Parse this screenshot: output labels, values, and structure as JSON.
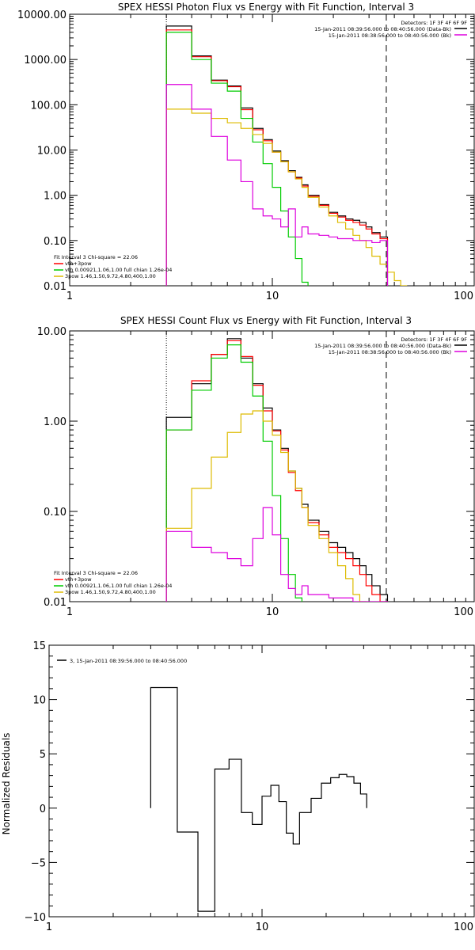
{
  "chart_data": [
    {
      "type": "line",
      "title": "SPEX HESSI Photon Flux vs Energy with Fit Function, Interval 3",
      "xscale": "log",
      "yscale": "log",
      "xlim": [
        1,
        100
      ],
      "ylim": [
        0.01,
        10000
      ],
      "xticks": [
        "1",
        "10",
        "100"
      ],
      "yticks": [
        "0.01",
        "0.10",
        "1.00",
        "10.00",
        "100.00",
        "1000.00",
        "10000.00"
      ],
      "yticklabels": [
        "0.01",
        "0.10",
        "1.00",
        "10.00",
        "100.00",
        "1000.00",
        "10000.00"
      ],
      "legend_top": {
        "placement": "top-right",
        "lines": [
          {
            "text": "Detectors: 1F 3F 4F 6F 9F",
            "color": ""
          },
          {
            "text": "15-Jan-2011 08:39:56.000 to 08:40:56.000 (Data-Bk)",
            "color": "#000000"
          },
          {
            "text": "15-Jan-2011 08:38:56.000 to 08:40:56.000 (Bk)",
            "color": "#dd00dd"
          }
        ]
      },
      "legend_bottom": {
        "placement": "bottom-left",
        "lines": [
          {
            "text": "Fit Interval 3   Chi-square = 22.06",
            "color": ""
          },
          {
            "text": "vth+3pow",
            "color": "#ff0000"
          },
          {
            "text": "vth 0.00921,1.06,1.00  full chian 1.26e-04",
            "color": "#00cc00"
          },
          {
            "text": "3pow 1.46,1.50,9.72,4.80,400,1.00",
            "color": "#ddbb00"
          }
        ]
      },
      "markers": {
        "dotted_x": 3.0,
        "dashed_x": 36.5
      },
      "bin_edges": [
        3.0,
        4.0,
        5.0,
        6.0,
        7.0,
        8.0,
        9.0,
        10.0,
        11.0,
        12.0,
        13.0,
        14.0,
        15.0,
        17.0,
        19.0,
        21.0,
        23.0,
        25.0,
        27.0,
        29.0,
        31.0,
        34.0,
        37.0,
        40.0,
        43.0,
        46.0
      ],
      "series": [
        {
          "color": "#000000",
          "values": [
            5500,
            1200,
            350,
            260,
            85,
            30,
            17,
            9.5,
            5.8,
            3.5,
            2.5,
            1.7,
            1.0,
            0.62,
            0.42,
            0.35,
            0.3,
            0.28,
            0.25,
            0.2,
            0.15,
            0.12,
            null,
            null,
            null
          ]
        },
        {
          "color": "#ff0000",
          "values": [
            4500,
            1150,
            340,
            250,
            78,
            28,
            16,
            9.0,
            5.5,
            3.3,
            2.4,
            1.6,
            0.95,
            0.6,
            0.4,
            0.33,
            0.28,
            0.25,
            0.22,
            0.18,
            0.14,
            0.11,
            null,
            null,
            null
          ]
        },
        {
          "color": "#00cc00",
          "values": [
            4000,
            1000,
            300,
            200,
            50,
            15,
            5,
            1.5,
            0.45,
            0.12,
            0.04,
            0.012,
            null,
            null,
            null,
            null,
            null,
            null,
            null,
            null,
            null,
            null,
            null,
            null,
            null
          ]
        },
        {
          "color": "#ddbb00",
          "values": [
            80,
            65,
            50,
            40,
            30,
            22,
            14,
            9.0,
            5.5,
            3.3,
            2.3,
            1.5,
            0.9,
            0.55,
            0.35,
            0.25,
            0.18,
            0.13,
            0.1,
            0.07,
            0.045,
            0.03,
            0.02,
            0.013,
            0.009
          ]
        },
        {
          "color": "#dd00dd",
          "values": [
            280,
            80,
            20,
            6,
            2.0,
            0.5,
            0.35,
            0.3,
            0.2,
            0.5,
            0.12,
            0.2,
            0.14,
            0.13,
            0.12,
            0.11,
            0.11,
            0.1,
            0.1,
            0.1,
            0.09,
            0.1,
            null,
            null,
            null
          ]
        }
      ]
    },
    {
      "type": "line",
      "title": "SPEX HESSI Count Flux vs Energy with Fit Function, Interval 3",
      "xscale": "log",
      "yscale": "log",
      "xlim": [
        1,
        100
      ],
      "ylim": [
        0.01,
        10
      ],
      "xticks": [
        "1",
        "10",
        "100"
      ],
      "yticks": [
        "0.01",
        "0.10",
        "1.00",
        "10.00"
      ],
      "yticklabels": [
        "0.01",
        "0.10",
        "1.00",
        "10.00"
      ],
      "legend_top": {
        "placement": "top-right",
        "lines": [
          {
            "text": "Detectors: 1F 3F 4F 6F 9F",
            "color": ""
          },
          {
            "text": "15-Jan-2011 08:39:56.000 to 08:40:56.000 (Data-Bk)",
            "color": "#000000"
          },
          {
            "text": "15-Jan-2011 08:38:56.000 to 08:40:56.000 (Bk)",
            "color": "#dd00dd"
          }
        ]
      },
      "legend_bottom": {
        "placement": "bottom-left",
        "lines": [
          {
            "text": "Fit Interval 3   Chi-square = 22.06",
            "color": ""
          },
          {
            "text": "vth+3pow",
            "color": "#ff0000"
          },
          {
            "text": "vth 0.00921,1.06,1.00  full chian 1.26e-04",
            "color": "#00cc00"
          },
          {
            "text": "3pow 1.46,1.50,9.72,4.80,400,1.00",
            "color": "#ddbb00"
          }
        ]
      },
      "markers": {
        "dotted_x": 3.0,
        "dashed_x": 36.5
      },
      "bin_edges": [
        3.0,
        4.0,
        5.0,
        6.0,
        7.0,
        8.0,
        9.0,
        10.0,
        11.0,
        12.0,
        13.0,
        14.0,
        15.0,
        17.0,
        19.0,
        21.0,
        23.0,
        25.0,
        27.0,
        29.0,
        31.0,
        34.0,
        37.0
      ],
      "series": [
        {
          "color": "#000000",
          "values": [
            1.1,
            2.6,
            5.5,
            8.2,
            5.0,
            2.6,
            1.4,
            0.8,
            0.5,
            0.28,
            0.18,
            0.12,
            0.08,
            0.06,
            0.045,
            0.04,
            0.035,
            0.03,
            0.025,
            0.02,
            0.015,
            0.012
          ]
        },
        {
          "color": "#ff0000",
          "values": [
            0.8,
            2.8,
            5.5,
            7.8,
            5.2,
            2.5,
            1.3,
            0.78,
            0.48,
            0.27,
            0.17,
            0.11,
            0.075,
            0.055,
            0.04,
            0.035,
            0.03,
            0.025,
            0.02,
            0.015,
            0.012,
            0.01
          ]
        },
        {
          "color": "#00cc00",
          "values": [
            0.8,
            2.2,
            5.0,
            7.0,
            4.5,
            1.9,
            0.6,
            0.15,
            0.05,
            0.02,
            0.011,
            null,
            null,
            null,
            null,
            null,
            null,
            null,
            null,
            null,
            null,
            null
          ]
        },
        {
          "color": "#ddbb00",
          "values": [
            0.065,
            0.18,
            0.4,
            0.75,
            1.2,
            1.3,
            1.0,
            0.7,
            0.45,
            0.28,
            0.18,
            0.11,
            0.07,
            0.05,
            0.035,
            0.025,
            0.018,
            0.012,
            0.01,
            null,
            null,
            null
          ]
        },
        {
          "color": "#dd00dd",
          "values": [
            0.06,
            0.04,
            0.035,
            0.03,
            0.025,
            0.05,
            0.11,
            0.055,
            0.02,
            0.014,
            0.012,
            0.015,
            0.012,
            0.012,
            0.011,
            0.011,
            0.011,
            0.01,
            0.01,
            0.01,
            0.01,
            0.01
          ]
        }
      ]
    },
    {
      "type": "line",
      "title": "",
      "xscale": "log",
      "yscale": "linear",
      "xlim": [
        1,
        100
      ],
      "ylim": [
        -10,
        15
      ],
      "xticks": [
        "1",
        "10",
        "100"
      ],
      "yticks": [
        -10,
        -5,
        0,
        5,
        10,
        15
      ],
      "yticklabels": [
        "−10",
        "−5",
        "0",
        "5",
        "10",
        "15"
      ],
      "ylabel": "Normalized Residuals",
      "legend_top": {
        "placement": "top-left",
        "lines": [
          {
            "text": "3, 15-Jan-2011 08:39:56.000 to 08:40:56.000",
            "color": "#000000"
          }
        ]
      },
      "bin_edges": [
        3.0,
        4.0,
        5.0,
        6.0,
        7.0,
        8.0,
        9.0,
        10.0,
        11.0,
        12.0,
        13.0,
        14.0,
        15.0,
        17.0,
        19.0,
        21.0,
        23.0,
        25.0,
        27.0,
        29.0,
        31.0,
        34.0,
        37.0
      ],
      "series": [
        {
          "color": "#000000",
          "values": [
            11.1,
            -2.2,
            -9.5,
            3.6,
            4.5,
            -0.4,
            -1.5,
            1.1,
            2.1,
            0.6,
            -2.3,
            -3.3,
            -0.4,
            0.9,
            2.3,
            2.8,
            3.1,
            2.9,
            2.3,
            1.3,
            null,
            null
          ]
        }
      ]
    }
  ]
}
